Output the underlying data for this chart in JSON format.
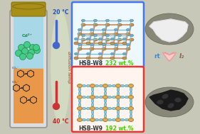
{
  "overall_bg": "#C8C8B8",
  "tube_color_top": "#A8D8E8",
  "tube_color_bottom": "#E89848",
  "tube_cap_color": "#A89018",
  "tube_outline": "#888888",
  "ball_color": "#44CC88",
  "ball_outline": "#228844",
  "diffusion_label": "diffusion temp",
  "temp_top": "20 °C",
  "temp_bottom": "40 °C",
  "hsb_w8_label": "HSB-W8",
  "hsb_w8_value": "232 wt.%",
  "hsb_w9_label": "HSB-W9",
  "hsb_w9_value": "192 wt.%",
  "box_w8_color": "#4477EE",
  "box_w9_color": "#EE3333",
  "mof8_link_color": "#CC8866",
  "mof8_node_color": "#88CCDD",
  "mof9_link_color": "#CC9944",
  "mof9_node_color": "#88CCDD",
  "rt_label": "rt",
  "i2_label": "I₂",
  "arrow_color_light": "#FFCCCC",
  "arrow_color_dark": "#EE9999",
  "label_color": "#44CC00",
  "cd_label": "Cd²⁺",
  "co2_label": "CO₂⁻"
}
